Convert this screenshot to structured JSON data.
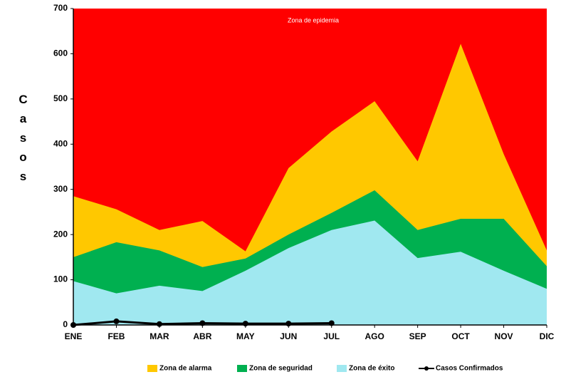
{
  "chart_data": {
    "type": "area",
    "y_label": "Casos",
    "annotation": "Zona de epidemia",
    "background_color": "#ff0000",
    "categories": [
      "ENE",
      "FEB",
      "MAR",
      "ABR",
      "MAY",
      "JUN",
      "JUL",
      "AGO",
      "SEP",
      "OCT",
      "NOV",
      "DIC"
    ],
    "series": [
      {
        "name": "Zona de alarma",
        "type": "area",
        "color": "#ffc800",
        "values": [
          285,
          256,
          210,
          230,
          163,
          347,
          428,
          495,
          362,
          622,
          378,
          165
        ]
      },
      {
        "name": "Zona de seguridad",
        "type": "area",
        "color": "#00b050",
        "values": [
          150,
          183,
          165,
          128,
          147,
          200,
          248,
          298,
          210,
          235,
          235,
          130
        ]
      },
      {
        "name": "Zona de éxito",
        "type": "area",
        "color": "#a0e8f0",
        "values": [
          97,
          70,
          87,
          75,
          120,
          170,
          210,
          231,
          148,
          162,
          120,
          80
        ]
      },
      {
        "name": "Casos Confirmados",
        "type": "line",
        "color": "#000000",
        "values": [
          0,
          8,
          2,
          4,
          3,
          3,
          4,
          null,
          null,
          null,
          null,
          null
        ]
      }
    ],
    "ylim": [
      0,
      700
    ],
    "yticks": [
      0,
      100,
      200,
      300,
      400,
      500,
      600,
      700
    ]
  }
}
